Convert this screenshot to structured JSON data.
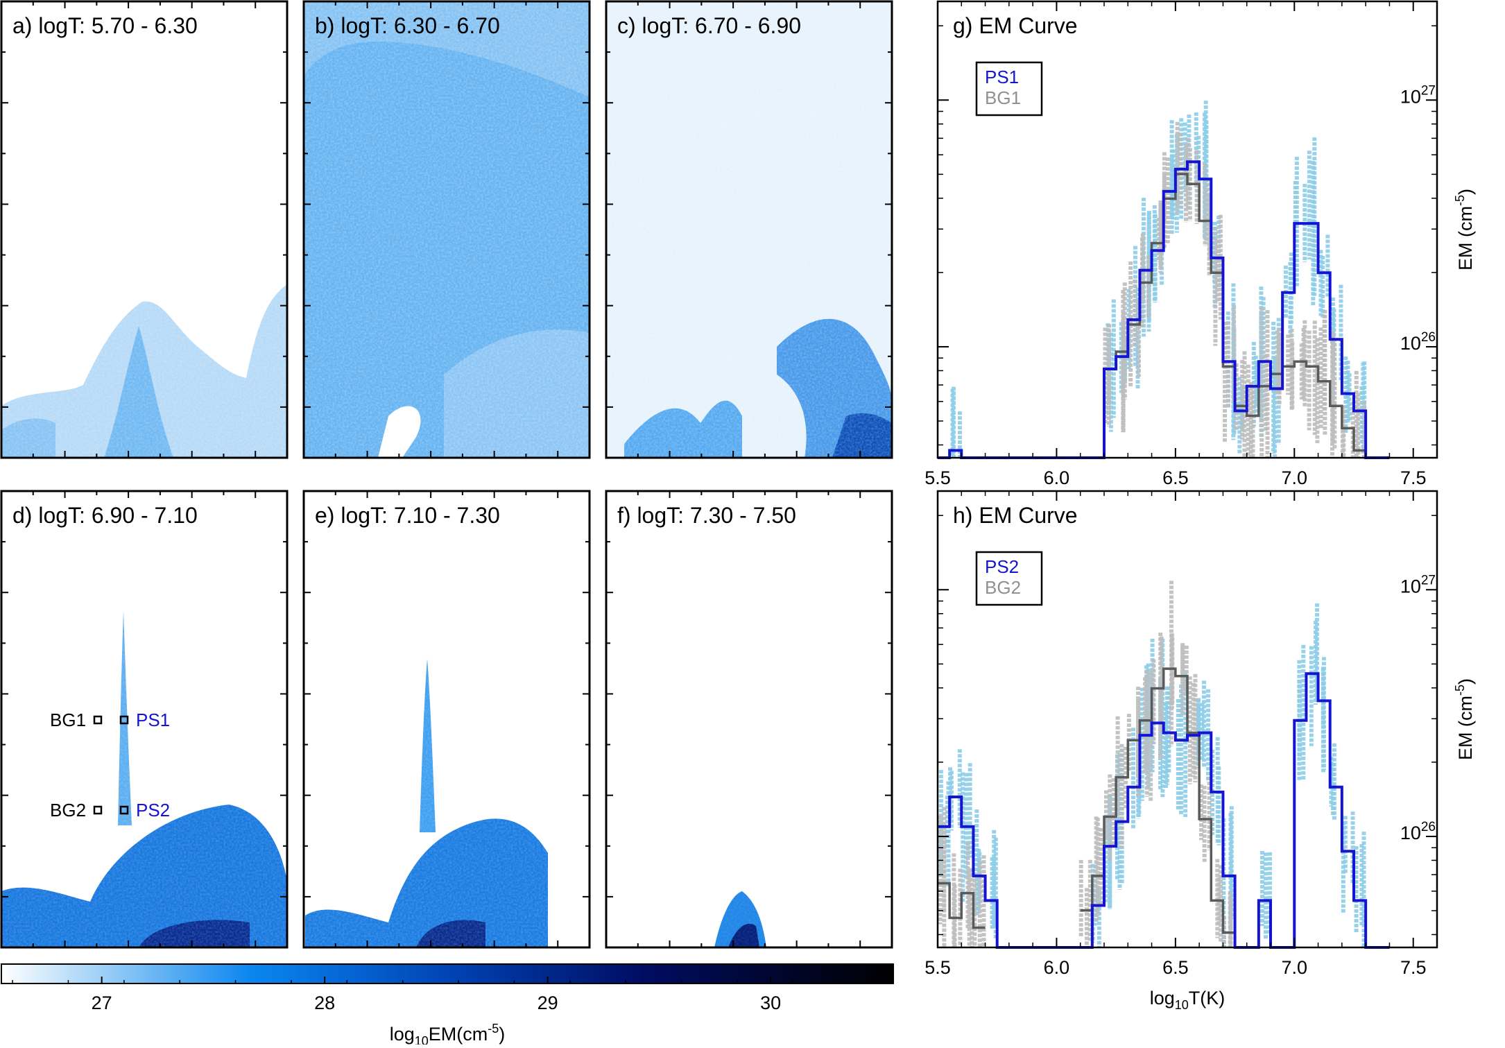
{
  "maps": {
    "panels": [
      {
        "label": "a) logT: 5.70 - 6.30"
      },
      {
        "label": "b) logT: 6.30 - 6.70"
      },
      {
        "label": "c) logT: 6.70 - 6.90"
      },
      {
        "label": "d) logT: 6.90 - 7.10"
      },
      {
        "label": "e) logT: 7.10 - 7.30"
      },
      {
        "label": "f) logT: 7.30 - 7.50"
      }
    ],
    "markers": {
      "bg1": "BG1",
      "ps1": "PS1",
      "bg2": "BG2",
      "ps2": "PS2"
    },
    "colors": {
      "dark": "#000000",
      "blue": "#1414d2"
    }
  },
  "colorbar": {
    "ticks": [
      "27",
      "28",
      "29",
      "30"
    ],
    "tick_values": [
      27,
      28,
      29,
      30
    ],
    "range": [
      26.55,
      30.55
    ],
    "label_main": "log",
    "label_sub": "10",
    "label_mid": "EM(cm",
    "label_sup": "-5",
    "label_end": ")",
    "colors": [
      "#ffffff",
      "#0a86f0",
      "#0040b0",
      "#000a5e",
      "#000000"
    ]
  },
  "chart_data": [
    {
      "type": "line",
      "id": "g",
      "title": "g) EM Curve",
      "x_ticks": [
        "5.5",
        "6.0",
        "6.5",
        "7.0",
        "7.5"
      ],
      "x_tick_values": [
        5.5,
        6.0,
        6.5,
        7.0,
        7.5
      ],
      "xlim": [
        5.5,
        7.6
      ],
      "ylim_log10": [
        25.55,
        27.4
      ],
      "ylabel": {
        "main": "EM (cm",
        "sup": "-5",
        "end": ")"
      },
      "y_ticks": [
        {
          "base": "10",
          "exp": "26",
          "value": 26
        },
        {
          "base": "10",
          "exp": "27",
          "value": 27
        }
      ],
      "legend": [
        {
          "name": "PS1",
          "color": "#1414d2"
        },
        {
          "name": "BG1",
          "color": "#909090"
        }
      ],
      "bins": [
        5.5,
        5.55,
        5.6,
        5.65,
        5.7,
        5.75,
        5.8,
        5.85,
        5.9,
        5.95,
        6.0,
        6.05,
        6.1,
        6.15,
        6.2,
        6.25,
        6.3,
        6.35,
        6.4,
        6.45,
        6.5,
        6.55,
        6.6,
        6.65,
        6.7,
        6.75,
        6.8,
        6.85,
        6.9,
        6.95,
        7.0,
        7.05,
        7.1,
        7.15,
        7.2,
        7.25,
        7.3,
        7.35
      ],
      "series": [
        {
          "name": "PS1",
          "color": "#1414d2",
          "values": [
            25.55,
            25.58,
            25.55,
            25.55,
            25.55,
            25.55,
            25.55,
            25.55,
            25.55,
            25.55,
            25.55,
            25.55,
            25.55,
            25.55,
            25.91,
            25.96,
            26.11,
            26.31,
            26.39,
            26.63,
            26.72,
            26.75,
            26.68,
            26.36,
            25.94,
            25.74,
            25.84,
            25.94,
            25.83,
            26.22,
            26.5,
            26.5,
            26.3,
            26.03,
            25.81,
            25.74,
            25.55,
            25.55
          ]
        },
        {
          "name": "BG1",
          "color": "#5a5a5a",
          "values": [
            null,
            null,
            null,
            null,
            null,
            null,
            null,
            null,
            null,
            null,
            null,
            null,
            null,
            null,
            25.91,
            25.98,
            26.09,
            26.26,
            26.42,
            26.6,
            26.7,
            26.66,
            26.51,
            26.3,
            25.92,
            25.76,
            25.72,
            25.84,
            25.89,
            25.92,
            25.94,
            25.92,
            25.86,
            25.76,
            25.67,
            25.58,
            null,
            null
          ]
        }
      ]
    },
    {
      "type": "line",
      "id": "h",
      "title": "h) EM Curve",
      "x_ticks": [
        "5.5",
        "6.0",
        "6.5",
        "7.0",
        "7.5"
      ],
      "x_tick_values": [
        5.5,
        6.0,
        6.5,
        7.0,
        7.5
      ],
      "xlim": [
        5.5,
        7.6
      ],
      "ylim_log10": [
        25.55,
        27.4
      ],
      "xlabel": {
        "main": "log",
        "sub": "10",
        "end": "T(K)"
      },
      "ylabel": {
        "main": "EM (cm",
        "sup": "-5",
        "end": ")"
      },
      "y_ticks": [
        {
          "base": "10",
          "exp": "26",
          "value": 26
        },
        {
          "base": "10",
          "exp": "27",
          "value": 27
        }
      ],
      "legend": [
        {
          "name": "PS2",
          "color": "#1414d2"
        },
        {
          "name": "BG2",
          "color": "#909090"
        }
      ],
      "bins": [
        5.5,
        5.55,
        5.6,
        5.65,
        5.7,
        5.75,
        5.8,
        5.85,
        5.9,
        5.95,
        6.0,
        6.05,
        6.1,
        6.15,
        6.2,
        6.25,
        6.3,
        6.35,
        6.4,
        6.45,
        6.5,
        6.55,
        6.6,
        6.65,
        6.7,
        6.75,
        6.8,
        6.85,
        6.9,
        6.95,
        7.0,
        7.05,
        7.1,
        7.15,
        7.2,
        7.25,
        7.3,
        7.35
      ],
      "series": [
        {
          "name": "PS2",
          "color": "#1414d2",
          "values": [
            26.04,
            26.16,
            26.04,
            25.84,
            25.74,
            25.55,
            25.55,
            25.55,
            25.55,
            25.55,
            25.55,
            25.55,
            25.55,
            25.72,
            25.96,
            26.06,
            26.2,
            26.41,
            26.46,
            26.42,
            26.39,
            26.41,
            26.42,
            26.18,
            25.84,
            25.55,
            25.55,
            25.74,
            25.55,
            25.55,
            26.47,
            26.66,
            26.55,
            26.2,
            25.94,
            25.74,
            25.55,
            25.55
          ]
        },
        {
          "name": "BG2",
          "color": "#5a5a5a",
          "values": [
            25.81,
            25.67,
            25.77,
            25.63,
            null,
            null,
            null,
            null,
            null,
            null,
            null,
            null,
            25.7,
            25.84,
            26.08,
            26.24,
            26.39,
            26.47,
            26.6,
            26.68,
            26.65,
            26.42,
            26.07,
            25.74,
            25.61,
            null,
            null,
            null,
            null,
            null,
            null,
            null,
            null,
            null,
            null,
            null,
            null,
            null
          ]
        }
      ]
    }
  ]
}
